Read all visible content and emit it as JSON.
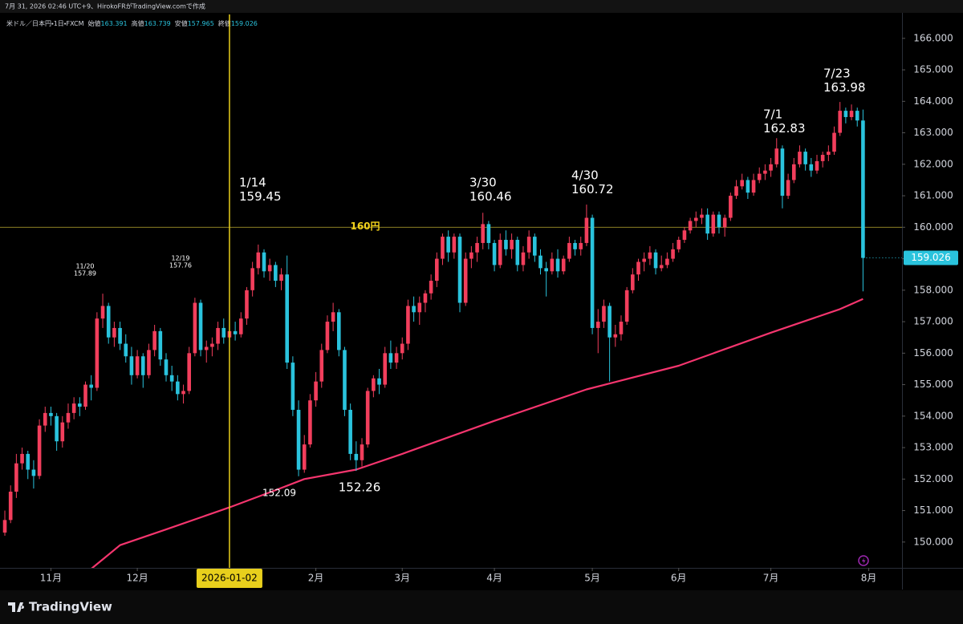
{
  "chart_data": {
    "type": "candlestick",
    "credit": "7月 31, 2026 02:46 UTC+9、HirokoFRがTradingView.comで作成",
    "symbol": "米ドル／日本円・1日・FXCM",
    "ohlc_labels": [
      "始値",
      "高値",
      "安値",
      "終値"
    ],
    "brand": "TradingView",
    "up_color": "#f23e5c",
    "down_color": "#2ac3dd",
    "ylim": [
      149.18,
      166.76
    ],
    "yticks": [
      {
        "value": 150,
        "label": "150.000"
      },
      {
        "value": 151,
        "label": "151.000"
      },
      {
        "value": 152,
        "label": "152.000"
      },
      {
        "value": 153,
        "label": "153.000"
      },
      {
        "value": 154,
        "label": "154.000"
      },
      {
        "value": 155,
        "label": "155.000"
      },
      {
        "value": 156,
        "label": "156.000"
      },
      {
        "value": 157,
        "label": "157.000"
      },
      {
        "value": 158,
        "label": "158.000"
      },
      {
        "value": 159,
        "label": "159.000"
      },
      {
        "value": 160,
        "label": "160.000"
      },
      {
        "value": 161,
        "label": "161.000"
      },
      {
        "value": 162,
        "label": "162.000"
      },
      {
        "value": 163,
        "label": "163.000"
      },
      {
        "value": 164,
        "label": "164.000"
      },
      {
        "value": 165,
        "label": "165.000"
      },
      {
        "value": 166,
        "label": "166.000"
      }
    ],
    "xlim": [
      -0.84,
      155.77
    ],
    "xticks": [
      {
        "value": 8,
        "label": "11月"
      },
      {
        "value": 23,
        "label": "12月"
      },
      {
        "value": 54,
        "label": "2月"
      },
      {
        "value": 69,
        "label": "3月"
      },
      {
        "value": 85,
        "label": "4月"
      },
      {
        "value": 102,
        "label": "5月"
      },
      {
        "value": 117,
        "label": "6月"
      },
      {
        "value": 133,
        "label": "7月"
      },
      {
        "value": 150,
        "label": "8月"
      }
    ],
    "crosshair": {
      "value": 39,
      "label": "2026-01-02",
      "color": "#e8cf1c"
    },
    "hline": {
      "value": 160,
      "label": "160円",
      "color": "#8c7f24",
      "label_color": "#f2d21b"
    },
    "ma": {
      "color": "#f5356e",
      "x": [
        15,
        20,
        28,
        39,
        47,
        52,
        61,
        69,
        85,
        101,
        117,
        133,
        145,
        149
      ],
      "values": [
        149.15,
        149.9,
        150.4,
        151.1,
        151.65,
        152.0,
        152.3,
        152.8,
        153.85,
        154.85,
        155.6,
        156.65,
        157.4,
        157.72
      ]
    },
    "annotations": [
      {
        "date": "11/20",
        "price": 157.89
      },
      {
        "date": "12/19",
        "price": 157.76
      },
      {
        "date": "1/14",
        "price": 159.45
      },
      {
        "price": 152.09
      },
      {
        "price": 152.26
      },
      {
        "date": "3/30",
        "price": 160.46
      },
      {
        "date": "4/30",
        "price": 160.72
      },
      {
        "date": "7/1",
        "price": 162.83
      },
      {
        "date": "7/23",
        "price": 163.98
      }
    ],
    "ohlc": [
      [
        150.3,
        151.0,
        150.2,
        150.7
      ],
      [
        150.7,
        151.8,
        150.6,
        151.6
      ],
      [
        151.6,
        152.8,
        151.4,
        152.5
      ],
      [
        152.5,
        153.0,
        152.3,
        152.8
      ],
      [
        152.8,
        152.9,
        152.0,
        152.3
      ],
      [
        152.3,
        152.6,
        151.7,
        152.1
      ],
      [
        152.1,
        153.9,
        152.0,
        153.7
      ],
      [
        153.7,
        154.3,
        153.5,
        154.1
      ],
      [
        154.1,
        154.3,
        153.7,
        154.0
      ],
      [
        154.0,
        154.1,
        152.9,
        153.2
      ],
      [
        153.2,
        154.0,
        153.0,
        153.8
      ],
      [
        153.8,
        154.4,
        153.6,
        154.1
      ],
      [
        154.1,
        154.6,
        153.9,
        154.4
      ],
      [
        154.4,
        154.6,
        154.0,
        154.3
      ],
      [
        154.3,
        155.1,
        154.2,
        155.0
      ],
      [
        155.0,
        155.3,
        154.5,
        154.9
      ],
      [
        154.9,
        157.3,
        154.8,
        157.1
      ],
      [
        157.1,
        157.89,
        156.8,
        157.5
      ],
      [
        157.5,
        157.6,
        156.3,
        156.5
      ],
      [
        156.5,
        157.0,
        156.2,
        156.8
      ],
      [
        156.8,
        157.0,
        156.1,
        156.3
      ],
      [
        156.3,
        156.6,
        155.7,
        155.9
      ],
      [
        155.9,
        156.2,
        155.0,
        155.3
      ],
      [
        155.3,
        156.1,
        155.2,
        155.9
      ],
      [
        155.9,
        156.0,
        154.9,
        155.3
      ],
      [
        155.3,
        156.3,
        155.2,
        156.1
      ],
      [
        156.1,
        156.9,
        155.9,
        156.7
      ],
      [
        156.7,
        156.8,
        155.6,
        155.8
      ],
      [
        155.8,
        156.0,
        155.1,
        155.3
      ],
      [
        155.3,
        155.6,
        154.8,
        155.1
      ],
      [
        155.1,
        155.3,
        154.5,
        154.7
      ],
      [
        154.7,
        155.0,
        154.4,
        154.8
      ],
      [
        154.8,
        156.2,
        154.7,
        156.0
      ],
      [
        156.0,
        157.76,
        155.9,
        157.6
      ],
      [
        157.6,
        157.7,
        155.9,
        156.1
      ],
      [
        156.1,
        156.4,
        155.7,
        156.2
      ],
      [
        156.2,
        156.5,
        155.9,
        156.3
      ],
      [
        156.3,
        157.0,
        156.1,
        156.8
      ],
      [
        156.8,
        157.1,
        156.3,
        156.5
      ],
      [
        156.5,
        156.9,
        156.2,
        156.7
      ],
      [
        156.7,
        157.0,
        156.4,
        156.6
      ],
      [
        156.6,
        157.3,
        156.5,
        157.1
      ],
      [
        157.1,
        158.1,
        156.9,
        158.0
      ],
      [
        158.0,
        158.9,
        157.8,
        158.7
      ],
      [
        158.7,
        159.45,
        158.5,
        159.2
      ],
      [
        159.2,
        159.3,
        158.4,
        158.6
      ],
      [
        158.6,
        159.0,
        158.3,
        158.8
      ],
      [
        158.8,
        158.9,
        158.1,
        158.3
      ],
      [
        158.3,
        158.7,
        158.0,
        158.5
      ],
      [
        158.5,
        159.1,
        155.5,
        155.7
      ],
      [
        155.7,
        155.9,
        154.0,
        154.2
      ],
      [
        154.2,
        154.5,
        152.09,
        152.3
      ],
      [
        152.3,
        153.4,
        152.2,
        153.1
      ],
      [
        153.1,
        154.7,
        153.0,
        154.5
      ],
      [
        154.5,
        155.4,
        154.3,
        155.1
      ],
      [
        155.1,
        156.3,
        154.9,
        156.1
      ],
      [
        156.1,
        157.2,
        156.0,
        157.0
      ],
      [
        157.0,
        157.6,
        156.7,
        157.3
      ],
      [
        157.3,
        157.4,
        155.9,
        156.1
      ],
      [
        156.1,
        156.2,
        154.0,
        154.2
      ],
      [
        154.2,
        154.4,
        152.6,
        152.8
      ],
      [
        152.8,
        153.2,
        152.26,
        152.6
      ],
      [
        152.6,
        153.3,
        152.4,
        153.1
      ],
      [
        153.1,
        154.9,
        153.0,
        154.8
      ],
      [
        154.8,
        155.3,
        154.6,
        155.2
      ],
      [
        155.2,
        155.5,
        154.7,
        155.0
      ],
      [
        155.0,
        156.2,
        154.9,
        156.0
      ],
      [
        156.0,
        156.4,
        155.5,
        155.7
      ],
      [
        155.7,
        156.2,
        155.5,
        156.0
      ],
      [
        156.0,
        156.5,
        155.8,
        156.3
      ],
      [
        156.3,
        157.7,
        156.1,
        157.5
      ],
      [
        157.5,
        157.8,
        157.0,
        157.3
      ],
      [
        157.3,
        157.8,
        156.9,
        157.6
      ],
      [
        157.6,
        158.0,
        157.3,
        157.9
      ],
      [
        157.9,
        158.5,
        157.7,
        158.3
      ],
      [
        158.3,
        159.2,
        158.1,
        159.0
      ],
      [
        159.0,
        159.8,
        158.8,
        159.7
      ],
      [
        159.7,
        159.9,
        158.9,
        159.2
      ],
      [
        159.2,
        159.8,
        159.0,
        159.7
      ],
      [
        159.7,
        159.8,
        157.3,
        157.6
      ],
      [
        157.6,
        159.2,
        157.5,
        159.0
      ],
      [
        159.0,
        159.4,
        158.7,
        159.2
      ],
      [
        159.2,
        159.7,
        158.9,
        159.5
      ],
      [
        159.5,
        160.46,
        159.3,
        160.1
      ],
      [
        160.1,
        160.2,
        159.3,
        159.5
      ],
      [
        159.5,
        159.6,
        158.6,
        158.8
      ],
      [
        158.8,
        159.8,
        158.7,
        159.6
      ],
      [
        159.6,
        159.9,
        159.1,
        159.3
      ],
      [
        159.3,
        159.8,
        159.0,
        159.6
      ],
      [
        159.6,
        159.7,
        158.6,
        158.8
      ],
      [
        158.8,
        159.4,
        158.6,
        159.2
      ],
      [
        159.2,
        159.9,
        159.0,
        159.7
      ],
      [
        159.7,
        159.8,
        158.9,
        159.1
      ],
      [
        159.1,
        159.3,
        158.5,
        158.7
      ],
      [
        158.7,
        158.9,
        157.8,
        158.6
      ],
      [
        158.6,
        159.2,
        158.5,
        159.0
      ],
      [
        159.0,
        159.3,
        158.4,
        158.6
      ],
      [
        158.6,
        159.1,
        158.5,
        159.0
      ],
      [
        159.0,
        159.7,
        158.9,
        159.5
      ],
      [
        159.5,
        159.6,
        159.1,
        159.3
      ],
      [
        159.3,
        159.7,
        159.1,
        159.5
      ],
      [
        159.5,
        160.72,
        159.4,
        160.3
      ],
      [
        160.3,
        160.4,
        156.6,
        156.8
      ],
      [
        156.8,
        157.4,
        156.0,
        157.0
      ],
      [
        157.0,
        157.7,
        156.8,
        157.5
      ],
      [
        157.5,
        157.6,
        155.1,
        156.5
      ],
      [
        156.5,
        156.9,
        156.2,
        156.6
      ],
      [
        156.6,
        157.2,
        156.4,
        157.0
      ],
      [
        157.0,
        158.1,
        156.9,
        158.0
      ],
      [
        158.0,
        158.7,
        157.9,
        158.5
      ],
      [
        158.5,
        159.0,
        158.3,
        158.9
      ],
      [
        158.9,
        159.2,
        158.6,
        159.0
      ],
      [
        159.0,
        159.4,
        158.8,
        159.2
      ],
      [
        159.2,
        159.3,
        158.5,
        158.7
      ],
      [
        158.7,
        159.1,
        158.6,
        158.8
      ],
      [
        158.8,
        159.2,
        158.7,
        159.0
      ],
      [
        159.0,
        159.5,
        158.9,
        159.3
      ],
      [
        159.3,
        159.7,
        159.2,
        159.6
      ],
      [
        159.6,
        160.0,
        159.5,
        159.9
      ],
      [
        159.9,
        160.3,
        159.8,
        160.2
      ],
      [
        160.2,
        160.5,
        160.0,
        160.3
      ],
      [
        160.3,
        160.6,
        160.1,
        160.4
      ],
      [
        160.4,
        160.6,
        159.6,
        159.8
      ],
      [
        159.8,
        160.5,
        159.7,
        160.4
      ],
      [
        160.4,
        160.5,
        159.8,
        160.0
      ],
      [
        160.0,
        160.4,
        159.7,
        160.3
      ],
      [
        160.3,
        161.1,
        160.2,
        161.0
      ],
      [
        161.0,
        161.5,
        160.9,
        161.3
      ],
      [
        161.3,
        161.7,
        161.2,
        161.5
      ],
      [
        161.5,
        161.6,
        160.9,
        161.1
      ],
      [
        161.1,
        161.7,
        161.0,
        161.5
      ],
      [
        161.5,
        161.9,
        161.4,
        161.7
      ],
      [
        161.7,
        162.0,
        161.5,
        161.8
      ],
      [
        161.8,
        162.2,
        161.6,
        162.0
      ],
      [
        162.0,
        162.83,
        161.9,
        162.5
      ],
      [
        162.5,
        162.6,
        160.6,
        161.0
      ],
      [
        161.0,
        161.7,
        160.9,
        161.5
      ],
      [
        161.5,
        162.2,
        161.4,
        162.0
      ],
      [
        162.0,
        162.6,
        161.9,
        162.4
      ],
      [
        162.4,
        162.5,
        161.8,
        162.0
      ],
      [
        162.0,
        162.2,
        161.6,
        161.8
      ],
      [
        161.8,
        162.3,
        161.7,
        162.1
      ],
      [
        162.1,
        162.4,
        161.9,
        162.3
      ],
      [
        162.3,
        162.6,
        162.1,
        162.4
      ],
      [
        162.4,
        163.2,
        162.3,
        163.0
      ],
      [
        163.0,
        163.98,
        162.9,
        163.7
      ],
      [
        163.7,
        163.8,
        163.3,
        163.5
      ],
      [
        163.5,
        163.9,
        163.4,
        163.7
      ],
      [
        163.7,
        163.8,
        163.2,
        163.391
      ],
      [
        163.391,
        163.739,
        157.965,
        159.026
      ]
    ]
  }
}
